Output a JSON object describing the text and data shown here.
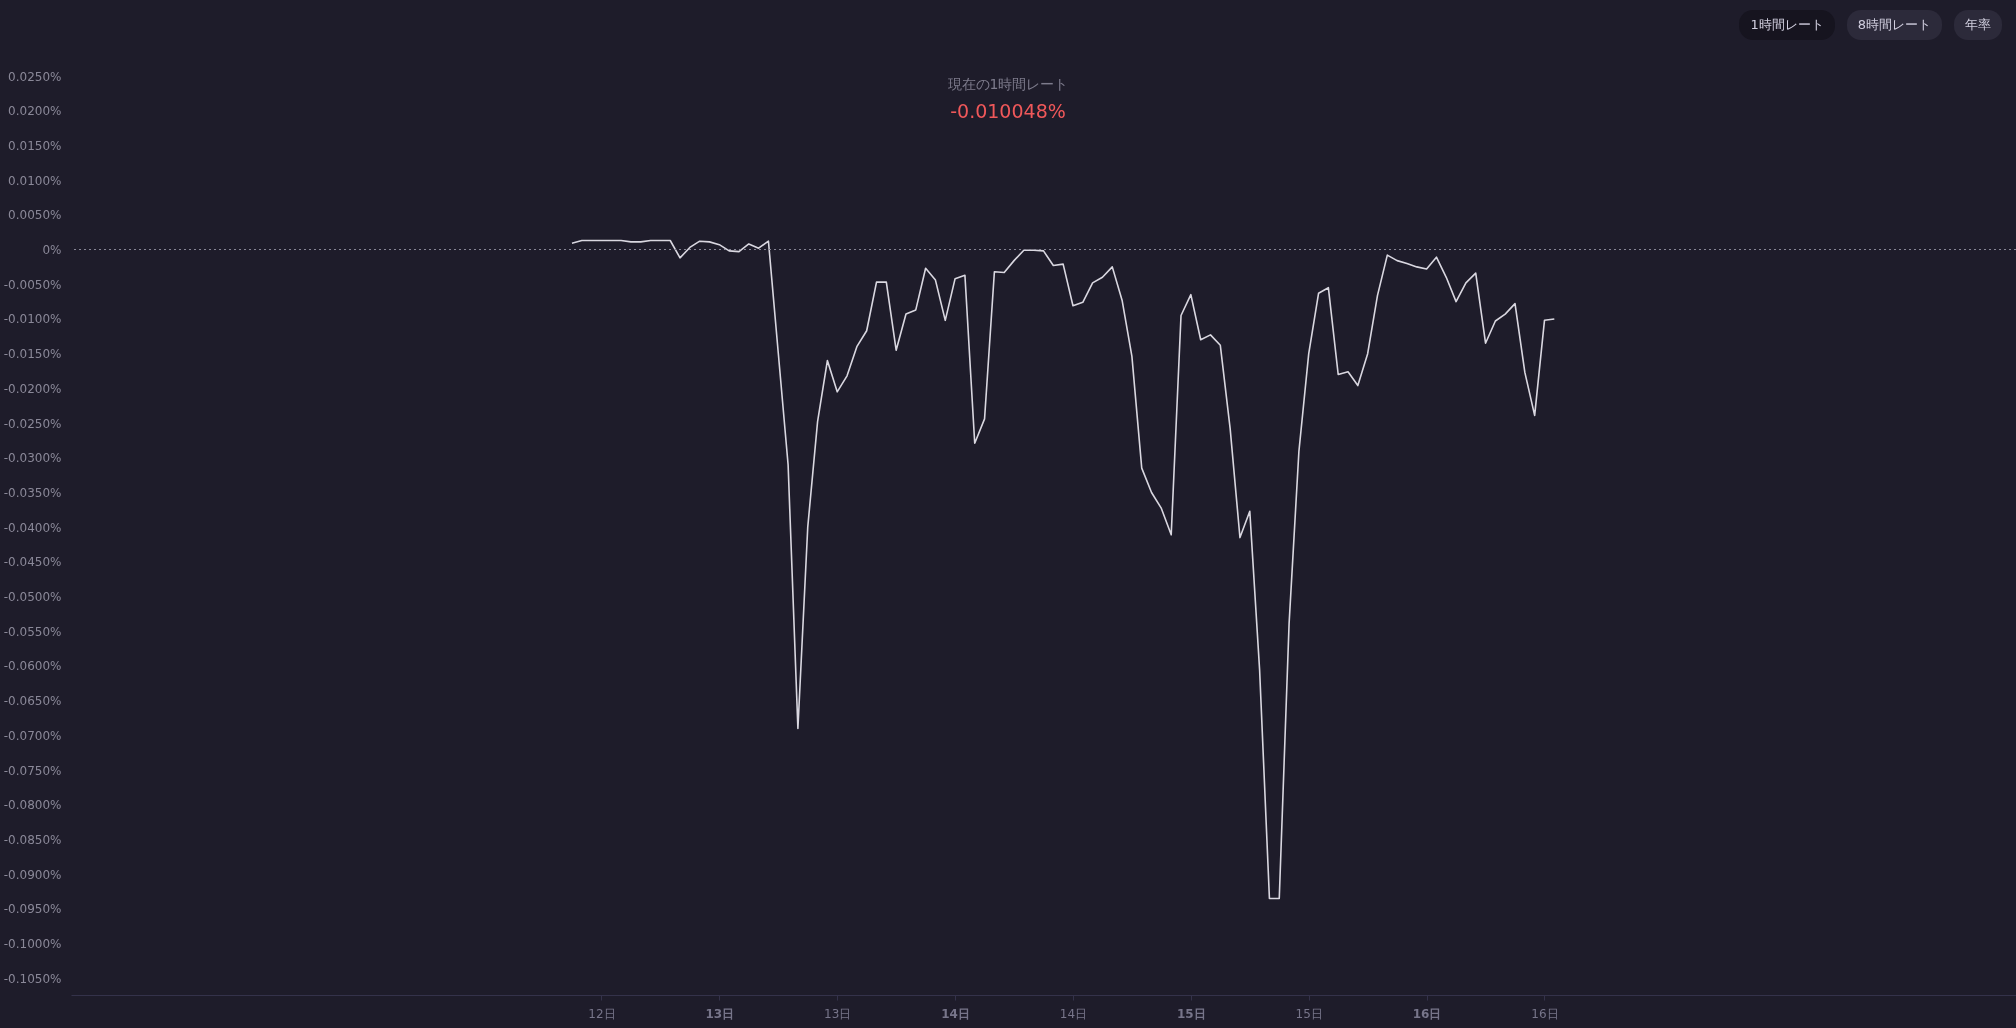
{
  "chart_data": {
    "type": "line",
    "title": "現在の1時間レート",
    "subtitle": "-0.010048%",
    "annotations": [
      "1時間レート",
      "8時間レート",
      "年率"
    ],
    "x": [
      12.375,
      12.4167,
      12.4583,
      12.5,
      12.5417,
      12.5833,
      12.625,
      12.6667,
      12.7083,
      12.75,
      12.7917,
      12.8333,
      12.875,
      12.9167,
      12.9583,
      13,
      13.0417,
      13.0833,
      13.125,
      13.1667,
      13.2083,
      13.25,
      13.2917,
      13.3333,
      13.375,
      13.4167,
      13.4583,
      13.5,
      13.5417,
      13.5833,
      13.625,
      13.6667,
      13.7083,
      13.75,
      13.7917,
      13.8333,
      13.875,
      13.9167,
      13.9583,
      14,
      14.0417,
      14.0833,
      14.125,
      14.1667,
      14.2083,
      14.25,
      14.2917,
      14.3333,
      14.375,
      14.4167,
      14.4583,
      14.5,
      14.5417,
      14.5833,
      14.625,
      14.6667,
      14.7083,
      14.75,
      14.7917,
      14.8333,
      14.875,
      14.9167,
      14.9583,
      15,
      15.0417,
      15.0833,
      15.125,
      15.1667,
      15.2083,
      15.25,
      15.2917,
      15.3333,
      15.375,
      15.4167,
      15.4583,
      15.5,
      15.5417,
      15.5833,
      15.625,
      15.6667,
      15.7083,
      15.75,
      15.7917,
      15.8333,
      15.875,
      15.9167,
      15.9583,
      16,
      16.0417,
      16.0833,
      16.125,
      16.1667,
      16.2083,
      16.25,
      16.2917,
      16.3333,
      16.375,
      16.4167,
      16.4583,
      16.5,
      16.5417
    ],
    "series": [
      {
        "color": "#d9d7e0",
        "values": [
          0.0009,
          0.0013,
          0.0013,
          0.0013,
          0.0013,
          0.0013,
          0.0011,
          0.0011,
          0.0013,
          0.0013,
          0.0013,
          -0.0012,
          0.0003,
          0.0012,
          0.0011,
          0.0007,
          -0.0002,
          -0.0003,
          0.0008,
          0.0002,
          0.0012,
          -0.0149,
          -0.031,
          -0.069,
          -0.04,
          -0.0248,
          -0.016,
          -0.0205,
          -0.0182,
          -0.014,
          -0.0117,
          -0.0047,
          -0.0047,
          -0.0145,
          -0.0093,
          -0.0087,
          -0.0027,
          -0.0044,
          -0.0102,
          -0.0042,
          -0.0037,
          -0.0279,
          -0.0244,
          -0.0032,
          -0.0033,
          -0.0016,
          -0.0001,
          -0.0001,
          -0.0002,
          -0.0023,
          -0.0021,
          -0.0081,
          -0.0076,
          -0.0048,
          -0.004,
          -0.0025,
          -0.0073,
          -0.0154,
          -0.0315,
          -0.035,
          -0.0373,
          -0.0411,
          -0.0095,
          -0.0065,
          -0.013,
          -0.0123,
          -0.0138,
          -0.0258,
          -0.0415,
          -0.0377,
          -0.0606,
          -0.0935,
          -0.0935,
          -0.0539,
          -0.0291,
          -0.015,
          -0.0063,
          -0.0055,
          -0.018,
          -0.0176,
          -0.0196,
          -0.015,
          -0.0066,
          -0.0008,
          -0.0016,
          -0.002,
          -0.0025,
          -0.0028,
          -0.0011,
          -0.004,
          -0.0075,
          -0.0048,
          -0.0034,
          -0.0135,
          -0.0103,
          -0.0093,
          -0.0078,
          -0.0177,
          -0.0239,
          -0.0102,
          -0.01
        ]
      }
    ],
    "xlim": [
      10.25,
      18.5
    ],
    "xticks": [
      {
        "value": 12.5,
        "label": "12日"
      },
      {
        "value": 13,
        "label": "13日"
      },
      {
        "value": 13.5,
        "label": "13日"
      },
      {
        "value": 14,
        "label": "14日"
      },
      {
        "value": 14.5,
        "label": "14日"
      },
      {
        "value": 15,
        "label": "15日"
      },
      {
        "value": 15.5,
        "label": "15日"
      },
      {
        "value": 16,
        "label": "16日"
      },
      {
        "value": 16.5,
        "label": "16日"
      }
    ],
    "ylim": [
      -0.1074,
      0.025
    ],
    "yticks": [
      {
        "value": 0.025,
        "label": "0.0250%"
      },
      {
        "value": 0.02,
        "label": "0.0200%"
      },
      {
        "value": 0.015,
        "label": "0.0150%"
      },
      {
        "value": 0.01,
        "label": "0.0100%"
      },
      {
        "value": 0.005,
        "label": "0.0050%"
      },
      {
        "value": 0,
        "label": "0%"
      },
      {
        "value": -0.005,
        "label": "-0.0050%"
      },
      {
        "value": -0.01,
        "label": "-0.0100%"
      },
      {
        "value": -0.015,
        "label": "-0.0150%"
      },
      {
        "value": -0.02,
        "label": "-0.0200%"
      },
      {
        "value": -0.025,
        "label": "-0.0250%"
      },
      {
        "value": -0.03,
        "label": "-0.0300%"
      },
      {
        "value": -0.035,
        "label": "-0.0350%"
      },
      {
        "value": -0.04,
        "label": "-0.0400%"
      },
      {
        "value": -0.045,
        "label": "-0.0450%"
      },
      {
        "value": -0.05,
        "label": "-0.0500%"
      },
      {
        "value": -0.055,
        "label": "-0.0550%"
      },
      {
        "value": -0.06,
        "label": "-0.0600%"
      },
      {
        "value": -0.065,
        "label": "-0.0650%"
      },
      {
        "value": -0.07,
        "label": "-0.0700%"
      },
      {
        "value": -0.075,
        "label": "-0.0750%"
      },
      {
        "value": -0.08,
        "label": "-0.0800%"
      },
      {
        "value": -0.085,
        "label": "-0.0850%"
      },
      {
        "value": -0.09,
        "label": "-0.0900%"
      },
      {
        "value": -0.095,
        "label": "-0.0950%"
      },
      {
        "value": -0.1,
        "label": "-0.1000%"
      },
      {
        "value": -0.105,
        "label": "-0.1050%"
      }
    ],
    "ref_lines": [
      {
        "axis": "y",
        "value": 0,
        "line_style": "dotted",
        "color": "#8a8898"
      }
    ]
  }
}
